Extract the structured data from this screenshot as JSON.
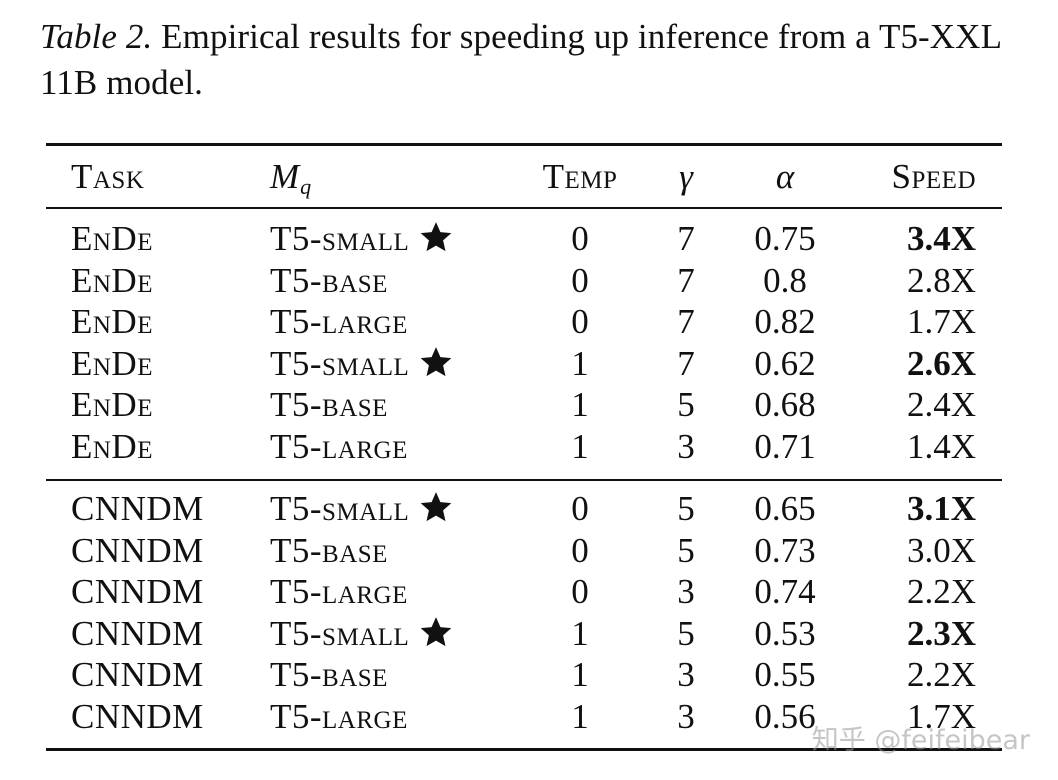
{
  "caption": {
    "label": "Table 2.",
    "text": " Empirical results for speeding up inference from a T5-XXL 11B model."
  },
  "table": {
    "headers": {
      "task": "Task",
      "mq_main": "M",
      "mq_sub": "q",
      "temp": "Temp",
      "gamma": "γ",
      "alpha": "α",
      "speed": "Speed"
    },
    "groups": [
      {
        "rows": [
          {
            "task": "EnDe",
            "mq": "T5-small",
            "star": true,
            "temp": "0",
            "gamma": "7",
            "alpha": "0.75",
            "speed": "3.4X",
            "bold": true
          },
          {
            "task": "EnDe",
            "mq": "T5-base",
            "star": false,
            "temp": "0",
            "gamma": "7",
            "alpha": "0.8",
            "speed": "2.8X",
            "bold": false
          },
          {
            "task": "EnDe",
            "mq": "T5-large",
            "star": false,
            "temp": "0",
            "gamma": "7",
            "alpha": "0.82",
            "speed": "1.7X",
            "bold": false
          },
          {
            "task": "EnDe",
            "mq": "T5-small",
            "star": true,
            "temp": "1",
            "gamma": "7",
            "alpha": "0.62",
            "speed": "2.6X",
            "bold": true
          },
          {
            "task": "EnDe",
            "mq": "T5-base",
            "star": false,
            "temp": "1",
            "gamma": "5",
            "alpha": "0.68",
            "speed": "2.4X",
            "bold": false
          },
          {
            "task": "EnDe",
            "mq": "T5-large",
            "star": false,
            "temp": "1",
            "gamma": "3",
            "alpha": "0.71",
            "speed": "1.4X",
            "bold": false
          }
        ]
      },
      {
        "rows": [
          {
            "task": "CNNDM",
            "mq": "T5-small",
            "star": true,
            "temp": "0",
            "gamma": "5",
            "alpha": "0.65",
            "speed": "3.1X",
            "bold": true
          },
          {
            "task": "CNNDM",
            "mq": "T5-base",
            "star": false,
            "temp": "0",
            "gamma": "5",
            "alpha": "0.73",
            "speed": "3.0X",
            "bold": false
          },
          {
            "task": "CNNDM",
            "mq": "T5-large",
            "star": false,
            "temp": "0",
            "gamma": "3",
            "alpha": "0.74",
            "speed": "2.2X",
            "bold": false
          },
          {
            "task": "CNNDM",
            "mq": "T5-small",
            "star": true,
            "temp": "1",
            "gamma": "5",
            "alpha": "0.53",
            "speed": "2.3X",
            "bold": true
          },
          {
            "task": "CNNDM",
            "mq": "T5-base",
            "star": false,
            "temp": "1",
            "gamma": "3",
            "alpha": "0.55",
            "speed": "2.2X",
            "bold": false
          },
          {
            "task": "CNNDM",
            "mq": "T5-large",
            "star": false,
            "temp": "1",
            "gamma": "3",
            "alpha": "0.56",
            "speed": "1.7X",
            "bold": false
          }
        ]
      }
    ]
  },
  "watermark": "知乎 @feifeibear",
  "icons": {
    "best_marker": "star-icon"
  },
  "colors": {
    "text": "#111111",
    "background": "#ffffff"
  }
}
